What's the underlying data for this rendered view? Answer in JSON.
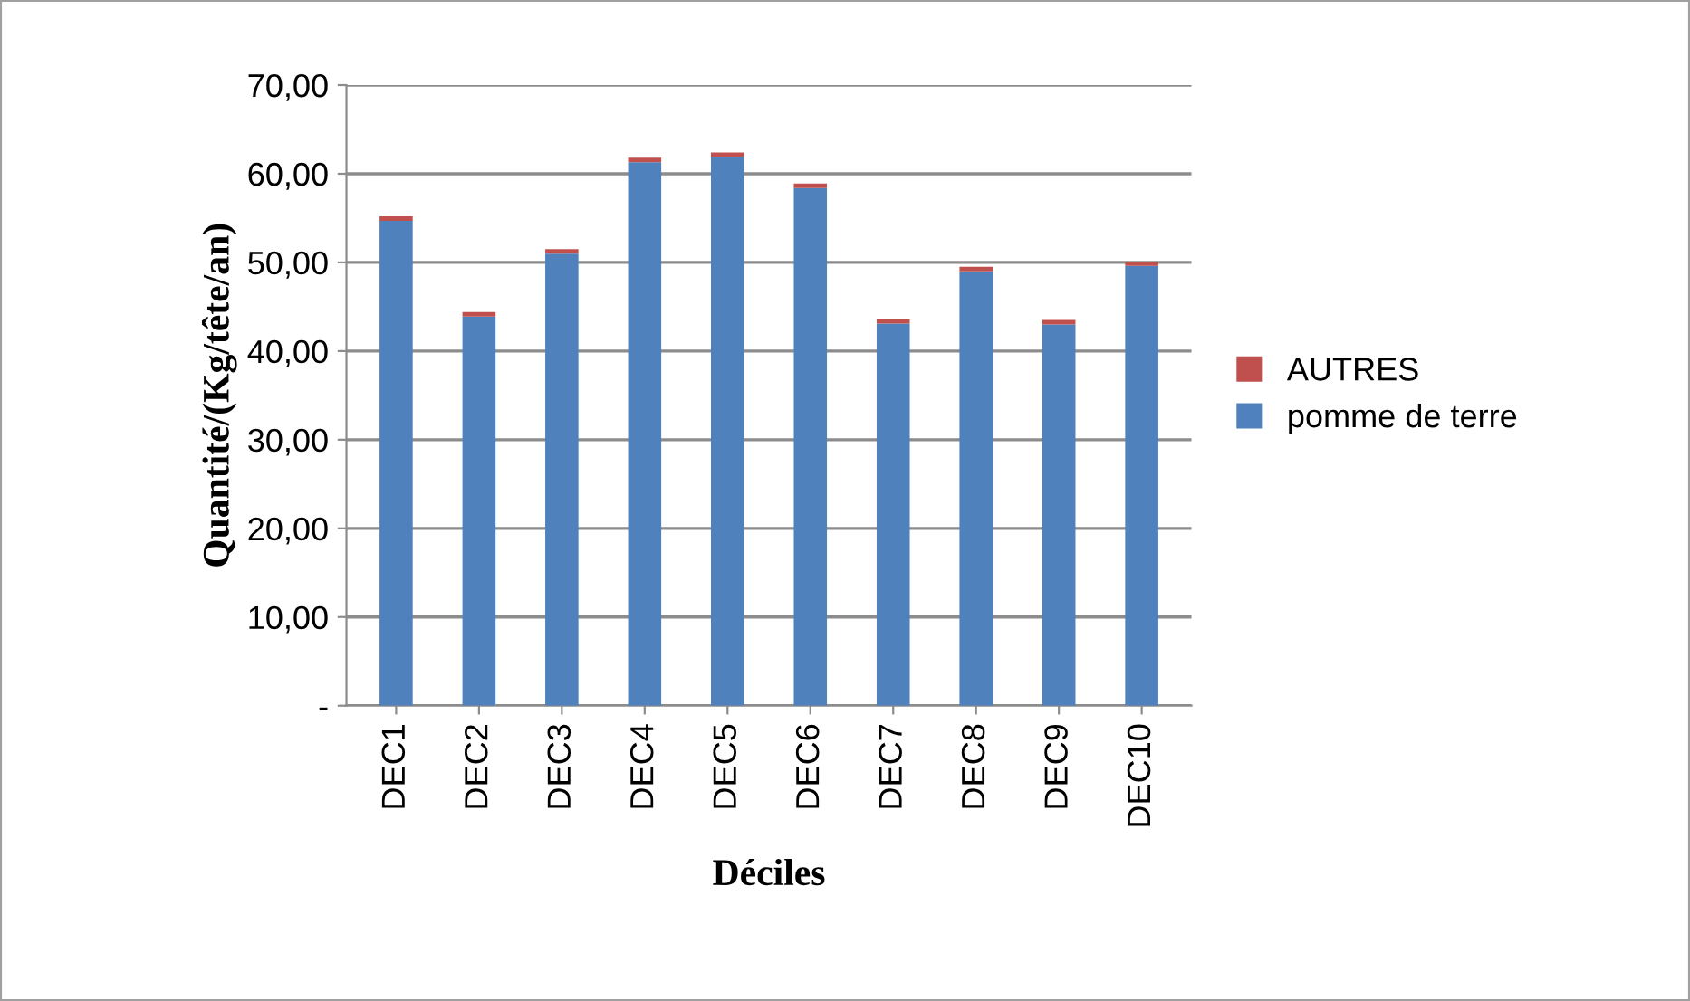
{
  "chart_data": {
    "type": "bar",
    "stacked": true,
    "xlabel": "Déciles",
    "ylabel": "Quantité/(Kg/tête/an)",
    "categories": [
      "DEC1",
      "DEC2",
      "DEC3",
      "DEC4",
      "DEC5",
      "DEC6",
      "DEC7",
      "DEC8",
      "DEC9",
      "DEC10"
    ],
    "series": [
      {
        "name": "pomme de terre",
        "color": "#4f81bd",
        "values": [
          54.7,
          43.9,
          51.0,
          61.3,
          61.9,
          58.4,
          43.1,
          49.0,
          43.0,
          49.6
        ]
      },
      {
        "name": "AUTRES",
        "color": "#c0504d",
        "values": [
          0.5,
          0.5,
          0.5,
          0.5,
          0.5,
          0.5,
          0.5,
          0.5,
          0.5,
          0.5
        ]
      }
    ],
    "ylim": [
      0,
      70
    ],
    "yticks": [
      {
        "value": 0,
        "label": "-"
      },
      {
        "value": 10,
        "label": "10,00"
      },
      {
        "value": 20,
        "label": "20,00"
      },
      {
        "value": 30,
        "label": "30,00"
      },
      {
        "value": 40,
        "label": "40,00"
      },
      {
        "value": 50,
        "label": "50,00"
      },
      {
        "value": 60,
        "label": "60,00"
      },
      {
        "value": 70,
        "label": "70,00"
      }
    ],
    "grid": "y",
    "legend": "right"
  }
}
